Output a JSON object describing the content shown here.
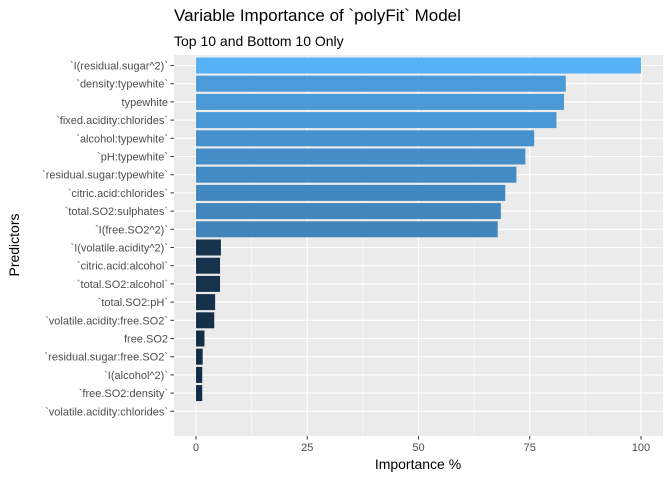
{
  "chart_data": {
    "type": "bar",
    "orientation": "horizontal",
    "title": "Variable Importance of `polyFit` Model",
    "subtitle": "Top 10 and Bottom 10 Only",
    "xlabel": "Importance %",
    "ylabel": "Predictors",
    "xlim": [
      0,
      100
    ],
    "xticks": [
      0,
      25,
      50,
      75,
      100
    ],
    "grid": true,
    "legend": "none",
    "categories": [
      "`I(residual.sugar^2)`",
      "`density:typewhite`",
      "typewhite",
      "`fixed.acidity:chlorides`",
      "`alcohol:typewhite`",
      "`pH:typewhite`",
      "`residual.sugar:typewhite`",
      "`citric.acid:chlorides`",
      "`total.SO2:sulphates`",
      "`I(free.SO2^2)`",
      "`I(volatile.acidity^2)`",
      "`citric.acid:alcohol`",
      "`total.SO2:alcohol`",
      "`total.SO2:pH`",
      "`volatile.acidity:free.SO2`",
      "free.SO2",
      "`residual.sugar:free.SO2`",
      "`I(alcohol^2)`",
      "`free.SO2:density`",
      "`volatile.acidity:chlorides`"
    ],
    "values": [
      100,
      83.1,
      82.7,
      81.0,
      76.0,
      74.0,
      72.0,
      69.5,
      68.5,
      67.8,
      5.6,
      5.4,
      5.4,
      4.3,
      4.1,
      1.9,
      1.5,
      1.4,
      1.4,
      0
    ],
    "colors": {
      "panel": "#EBEBEB",
      "grid_major": "#FFFFFF",
      "bar_low": "#132B43",
      "bar_high": "#56B1F7"
    }
  }
}
